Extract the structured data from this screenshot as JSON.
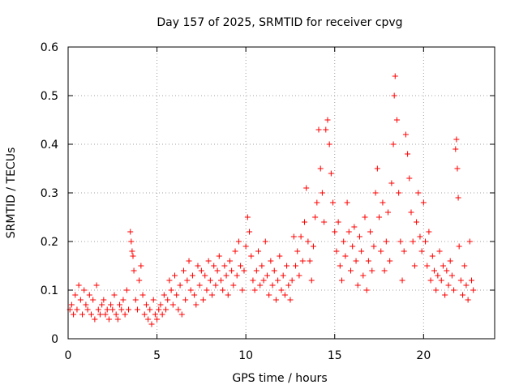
{
  "chart_data": {
    "type": "scatter",
    "title": "Day 157 of 2025, SRMTID for receiver cpvg",
    "xlabel": "GPS time / hours",
    "ylabel": "SRMTID / TECUs",
    "xlim": [
      0,
      24
    ],
    "ylim": [
      0,
      0.6
    ],
    "xticks": [
      0,
      5,
      10,
      15,
      20
    ],
    "xtick_labels": [
      "0",
      "5",
      "10",
      "15",
      "20"
    ],
    "yticks": [
      0,
      0.1,
      0.2,
      0.3,
      0.4,
      0.5,
      0.6
    ],
    "ytick_labels": [
      "0",
      "0.1",
      "0.2",
      "0.3",
      "0.4",
      "0.5",
      "0.6"
    ],
    "grid": true,
    "marker": "plus",
    "color": "#ff0000",
    "series": [
      {
        "name": "SRMTID",
        "points": [
          [
            0.1,
            0.06
          ],
          [
            0.2,
            0.07
          ],
          [
            0.3,
            0.05
          ],
          [
            0.4,
            0.09
          ],
          [
            0.5,
            0.06
          ],
          [
            0.6,
            0.11
          ],
          [
            0.7,
            0.08
          ],
          [
            0.8,
            0.05
          ],
          [
            0.9,
            0.1
          ],
          [
            1.0,
            0.07
          ],
          [
            1.1,
            0.06
          ],
          [
            1.2,
            0.09
          ],
          [
            1.3,
            0.05
          ],
          [
            1.4,
            0.08
          ],
          [
            1.5,
            0.04
          ],
          [
            1.6,
            0.11
          ],
          [
            1.7,
            0.06
          ],
          [
            1.8,
            0.05
          ],
          [
            1.9,
            0.07
          ],
          [
            2.0,
            0.08
          ],
          [
            2.1,
            0.05
          ],
          [
            2.2,
            0.06
          ],
          [
            2.3,
            0.04
          ],
          [
            2.4,
            0.07
          ],
          [
            2.5,
            0.06
          ],
          [
            2.6,
            0.09
          ],
          [
            2.7,
            0.05
          ],
          [
            2.8,
            0.04
          ],
          [
            2.9,
            0.07
          ],
          [
            3.0,
            0.06
          ],
          [
            3.1,
            0.08
          ],
          [
            3.2,
            0.05
          ],
          [
            3.3,
            0.1
          ],
          [
            3.4,
            0.06
          ],
          [
            3.5,
            0.22
          ],
          [
            3.55,
            0.2
          ],
          [
            3.6,
            0.18
          ],
          [
            3.65,
            0.17
          ],
          [
            3.7,
            0.14
          ],
          [
            3.8,
            0.08
          ],
          [
            3.9,
            0.06
          ],
          [
            4.0,
            0.12
          ],
          [
            4.1,
            0.15
          ],
          [
            4.2,
            0.09
          ],
          [
            4.3,
            0.05
          ],
          [
            4.4,
            0.07
          ],
          [
            4.5,
            0.04
          ],
          [
            4.6,
            0.06
          ],
          [
            4.7,
            0.03
          ],
          [
            4.8,
            0.08
          ],
          [
            4.9,
            0.05
          ],
          [
            5.0,
            0.04
          ],
          [
            5.1,
            0.06
          ],
          [
            5.2,
            0.07
          ],
          [
            5.3,
            0.05
          ],
          [
            5.4,
            0.09
          ],
          [
            5.5,
            0.06
          ],
          [
            5.6,
            0.08
          ],
          [
            5.7,
            0.12
          ],
          [
            5.8,
            0.1
          ],
          [
            5.9,
            0.07
          ],
          [
            6.0,
            0.13
          ],
          [
            6.1,
            0.09
          ],
          [
            6.2,
            0.06
          ],
          [
            6.3,
            0.11
          ],
          [
            6.4,
            0.05
          ],
          [
            6.5,
            0.14
          ],
          [
            6.6,
            0.08
          ],
          [
            6.7,
            0.12
          ],
          [
            6.8,
            0.16
          ],
          [
            6.9,
            0.1
          ],
          [
            7.0,
            0.13
          ],
          [
            7.1,
            0.09
          ],
          [
            7.2,
            0.07
          ],
          [
            7.3,
            0.15
          ],
          [
            7.4,
            0.11
          ],
          [
            7.5,
            0.14
          ],
          [
            7.6,
            0.08
          ],
          [
            7.7,
            0.13
          ],
          [
            7.8,
            0.1
          ],
          [
            7.9,
            0.16
          ],
          [
            8.0,
            0.12
          ],
          [
            8.1,
            0.09
          ],
          [
            8.2,
            0.15
          ],
          [
            8.3,
            0.11
          ],
          [
            8.4,
            0.14
          ],
          [
            8.5,
            0.17
          ],
          [
            8.6,
            0.12
          ],
          [
            8.7,
            0.1
          ],
          [
            8.8,
            0.15
          ],
          [
            8.9,
            0.13
          ],
          [
            9.0,
            0.09
          ],
          [
            9.1,
            0.16
          ],
          [
            9.2,
            0.14
          ],
          [
            9.3,
            0.11
          ],
          [
            9.4,
            0.18
          ],
          [
            9.5,
            0.13
          ],
          [
            9.6,
            0.2
          ],
          [
            9.7,
            0.15
          ],
          [
            9.8,
            0.1
          ],
          [
            9.9,
            0.14
          ],
          [
            10.0,
            0.19
          ],
          [
            10.1,
            0.25
          ],
          [
            10.2,
            0.22
          ],
          [
            10.3,
            0.17
          ],
          [
            10.4,
            0.12
          ],
          [
            10.5,
            0.1
          ],
          [
            10.6,
            0.14
          ],
          [
            10.7,
            0.18
          ],
          [
            10.8,
            0.11
          ],
          [
            10.9,
            0.15
          ],
          [
            11.0,
            0.12
          ],
          [
            11.1,
            0.2
          ],
          [
            11.2,
            0.13
          ],
          [
            11.3,
            0.09
          ],
          [
            11.4,
            0.16
          ],
          [
            11.5,
            0.11
          ],
          [
            11.6,
            0.14
          ],
          [
            11.7,
            0.08
          ],
          [
            11.8,
            0.12
          ],
          [
            11.9,
            0.17
          ],
          [
            12.0,
            0.1
          ],
          [
            12.1,
            0.13
          ],
          [
            12.2,
            0.09
          ],
          [
            12.3,
            0.15
          ],
          [
            12.4,
            0.11
          ],
          [
            12.5,
            0.08
          ],
          [
            12.6,
            0.12
          ],
          [
            12.7,
            0.21
          ],
          [
            12.8,
            0.15
          ],
          [
            12.9,
            0.18
          ],
          [
            13.0,
            0.13
          ],
          [
            13.1,
            0.21
          ],
          [
            13.2,
            0.16
          ],
          [
            13.3,
            0.24
          ],
          [
            13.4,
            0.31
          ],
          [
            13.5,
            0.2
          ],
          [
            13.6,
            0.16
          ],
          [
            13.7,
            0.12
          ],
          [
            13.8,
            0.19
          ],
          [
            13.9,
            0.25
          ],
          [
            14.0,
            0.28
          ],
          [
            14.1,
            0.43
          ],
          [
            14.2,
            0.35
          ],
          [
            14.3,
            0.3
          ],
          [
            14.4,
            0.24
          ],
          [
            14.5,
            0.43
          ],
          [
            14.6,
            0.45
          ],
          [
            14.7,
            0.4
          ],
          [
            14.8,
            0.34
          ],
          [
            14.9,
            0.28
          ],
          [
            15.0,
            0.22
          ],
          [
            15.1,
            0.18
          ],
          [
            15.2,
            0.24
          ],
          [
            15.3,
            0.15
          ],
          [
            15.4,
            0.12
          ],
          [
            15.5,
            0.2
          ],
          [
            15.6,
            0.17
          ],
          [
            15.7,
            0.28
          ],
          [
            15.8,
            0.22
          ],
          [
            15.9,
            0.14
          ],
          [
            16.0,
            0.19
          ],
          [
            16.1,
            0.23
          ],
          [
            16.2,
            0.16
          ],
          [
            16.3,
            0.11
          ],
          [
            16.4,
            0.21
          ],
          [
            16.5,
            0.18
          ],
          [
            16.6,
            0.13
          ],
          [
            16.7,
            0.25
          ],
          [
            16.8,
            0.1
          ],
          [
            16.9,
            0.16
          ],
          [
            17.0,
            0.22
          ],
          [
            17.1,
            0.14
          ],
          [
            17.2,
            0.19
          ],
          [
            17.3,
            0.3
          ],
          [
            17.4,
            0.35
          ],
          [
            17.5,
            0.25
          ],
          [
            17.6,
            0.18
          ],
          [
            17.7,
            0.28
          ],
          [
            17.8,
            0.14
          ],
          [
            17.9,
            0.2
          ],
          [
            18.0,
            0.26
          ],
          [
            18.1,
            0.16
          ],
          [
            18.2,
            0.32
          ],
          [
            18.3,
            0.4
          ],
          [
            18.35,
            0.5
          ],
          [
            18.4,
            0.54
          ],
          [
            18.5,
            0.45
          ],
          [
            18.6,
            0.3
          ],
          [
            18.7,
            0.2
          ],
          [
            18.8,
            0.12
          ],
          [
            18.9,
            0.18
          ],
          [
            19.0,
            0.42
          ],
          [
            19.1,
            0.38
          ],
          [
            19.2,
            0.33
          ],
          [
            19.3,
            0.26
          ],
          [
            19.4,
            0.2
          ],
          [
            19.5,
            0.15
          ],
          [
            19.6,
            0.24
          ],
          [
            19.7,
            0.3
          ],
          [
            19.8,
            0.21
          ],
          [
            19.9,
            0.18
          ],
          [
            20.0,
            0.28
          ],
          [
            20.1,
            0.2
          ],
          [
            20.2,
            0.15
          ],
          [
            20.3,
            0.22
          ],
          [
            20.4,
            0.12
          ],
          [
            20.5,
            0.17
          ],
          [
            20.6,
            0.14
          ],
          [
            20.7,
            0.1
          ],
          [
            20.8,
            0.13
          ],
          [
            20.9,
            0.18
          ],
          [
            21.0,
            0.12
          ],
          [
            21.1,
            0.15
          ],
          [
            21.2,
            0.09
          ],
          [
            21.3,
            0.14
          ],
          [
            21.4,
            0.11
          ],
          [
            21.5,
            0.16
          ],
          [
            21.6,
            0.13
          ],
          [
            21.7,
            0.1
          ],
          [
            21.8,
            0.39
          ],
          [
            21.85,
            0.41
          ],
          [
            21.9,
            0.35
          ],
          [
            21.95,
            0.29
          ],
          [
            22.0,
            0.19
          ],
          [
            22.1,
            0.12
          ],
          [
            22.2,
            0.09
          ],
          [
            22.3,
            0.15
          ],
          [
            22.4,
            0.11
          ],
          [
            22.5,
            0.08
          ],
          [
            22.6,
            0.2
          ],
          [
            22.7,
            0.12
          ],
          [
            22.8,
            0.1
          ]
        ]
      }
    ]
  }
}
